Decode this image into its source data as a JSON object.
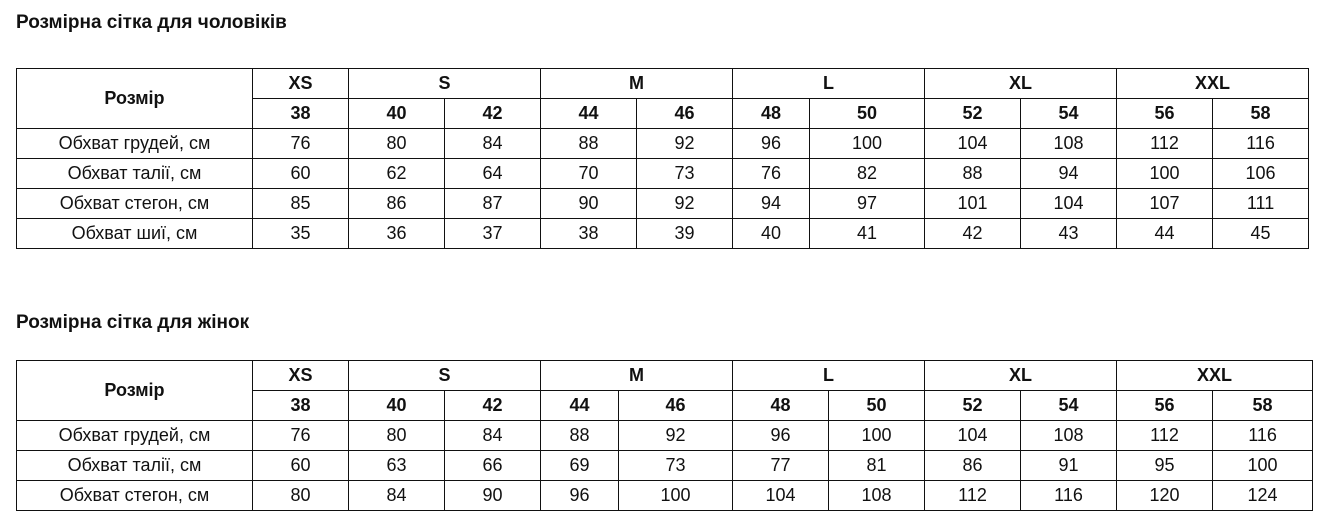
{
  "tables": [
    {
      "title": "Розмірна сітка для чоловіків",
      "header_label": "Розмір",
      "groups": [
        {
          "label": "XS",
          "sizes": [
            "38"
          ]
        },
        {
          "label": "S",
          "sizes": [
            "40",
            "42"
          ]
        },
        {
          "label": "M",
          "sizes": [
            "44",
            "46"
          ]
        },
        {
          "label": "L",
          "sizes": [
            "48",
            "50"
          ]
        },
        {
          "label": "XL",
          "sizes": [
            "52",
            "54"
          ]
        },
        {
          "label": "XXL",
          "sizes": [
            "56",
            "58"
          ]
        }
      ],
      "rows": [
        {
          "label": "Обхват грудей, см",
          "values": [
            "76",
            "80",
            "84",
            "88",
            "92",
            "96",
            "100",
            "104",
            "108",
            "112",
            "116"
          ]
        },
        {
          "label": "Обхват талії, см",
          "values": [
            "60",
            "62",
            "64",
            "70",
            "73",
            "76",
            "82",
            "88",
            "94",
            "100",
            "106"
          ]
        },
        {
          "label": "Обхват стегон, см",
          "values": [
            "85",
            "86",
            "87",
            "90",
            "92",
            "94",
            "97",
            "101",
            "104",
            "107",
            "111"
          ]
        },
        {
          "label": "Обхват шиї, см",
          "values": [
            "35",
            "36",
            "37",
            "38",
            "39",
            "40",
            "41",
            "42",
            "43",
            "44",
            "45"
          ]
        }
      ]
    },
    {
      "title": "Розмірна сітка для жінок",
      "header_label": "Розмір",
      "groups": [
        {
          "label": "XS",
          "sizes": [
            "38"
          ]
        },
        {
          "label": "S",
          "sizes": [
            "40",
            "42"
          ]
        },
        {
          "label": "M",
          "sizes": [
            "44",
            "46"
          ]
        },
        {
          "label": "L",
          "sizes": [
            "48",
            "50"
          ]
        },
        {
          "label": "XL",
          "sizes": [
            "52",
            "54"
          ]
        },
        {
          "label": "XXL",
          "sizes": [
            "56",
            "58"
          ]
        }
      ],
      "rows": [
        {
          "label": "Обхват грудей, см",
          "values": [
            "76",
            "80",
            "84",
            "88",
            "92",
            "96",
            "100",
            "104",
            "108",
            "112",
            "116"
          ]
        },
        {
          "label": "Обхват талії, см",
          "values": [
            "60",
            "63",
            "66",
            "69",
            "73",
            "77",
            "81",
            "86",
            "91",
            "95",
            "100"
          ]
        },
        {
          "label": "Обхват стегон, см",
          "values": [
            "80",
            "84",
            "90",
            "96",
            "100",
            "104",
            "108",
            "112",
            "116",
            "120",
            "124"
          ]
        }
      ]
    }
  ]
}
